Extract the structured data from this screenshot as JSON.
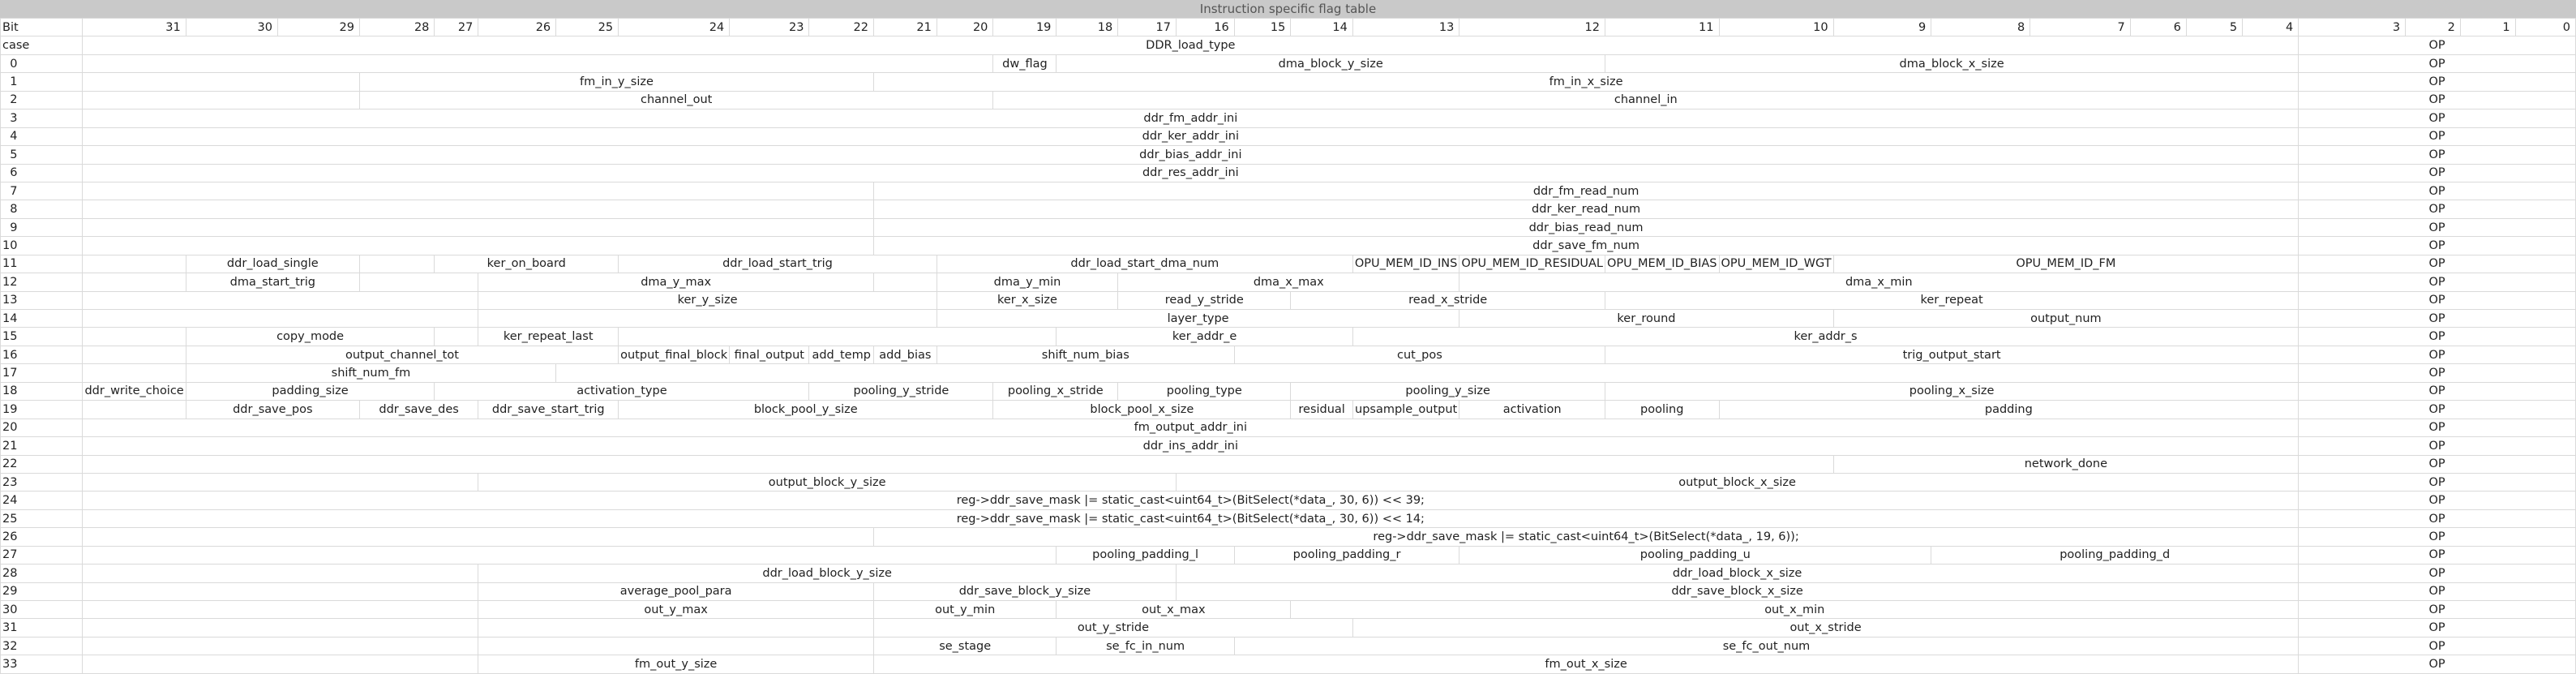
{
  "title": "Instruction specific flag table",
  "header": {
    "bit_label": "Bit",
    "case_label": "case",
    "bits": [
      "31",
      "30",
      "29",
      "28",
      "27",
      "26",
      "25",
      "24",
      "23",
      "22",
      "21",
      "20",
      "19",
      "18",
      "17",
      "16",
      "15",
      "14",
      "13",
      "12",
      "11",
      "10",
      "9",
      "8",
      "7",
      "6",
      "5",
      "4",
      "3",
      "2",
      "1",
      "0"
    ],
    "ddr_load_type": "DDR_load_type",
    "op": "OP"
  },
  "rows": [
    {
      "case": "0",
      "fields": [
        {
          "text": "",
          "span": 12
        },
        {
          "text": "dw_flag",
          "span": 1
        },
        {
          "text": "dma_block_y_size",
          "span": 7
        },
        {
          "text": "dma_block_x_size",
          "span": 8
        }
      ]
    },
    {
      "case": "1",
      "fields": [
        {
          "text": "",
          "span": 3
        },
        {
          "text": "fm_in_y_size",
          "span": 7
        },
        {
          "text": "fm_in_x_size",
          "span": 18
        }
      ]
    },
    {
      "case": "2",
      "fields": [
        {
          "text": "",
          "span": 3
        },
        {
          "text": "channel_out",
          "span": 9
        },
        {
          "text": "channel_in",
          "span": 16
        }
      ]
    },
    {
      "case": "3",
      "fields": [
        {
          "text": "ddr_fm_addr_ini",
          "span": 28
        }
      ]
    },
    {
      "case": "4",
      "fields": [
        {
          "text": "ddr_ker_addr_ini",
          "span": 28
        }
      ]
    },
    {
      "case": "5",
      "fields": [
        {
          "text": "ddr_bias_addr_ini",
          "span": 28
        }
      ]
    },
    {
      "case": "6",
      "fields": [
        {
          "text": "ddr_res_addr_ini",
          "span": 28
        }
      ]
    },
    {
      "case": "7",
      "fields": [
        {
          "text": "",
          "span": 10
        },
        {
          "text": "ddr_fm_read_num",
          "span": 18
        }
      ]
    },
    {
      "case": "8",
      "fields": [
        {
          "text": "",
          "span": 10
        },
        {
          "text": "ddr_ker_read_num",
          "span": 18
        }
      ]
    },
    {
      "case": "9",
      "fields": [
        {
          "text": "",
          "span": 10
        },
        {
          "text": "ddr_bias_read_num",
          "span": 18
        }
      ]
    },
    {
      "case": "10",
      "fields": [
        {
          "text": "",
          "span": 10
        },
        {
          "text": "ddr_save_fm_num",
          "span": 18
        }
      ]
    },
    {
      "case": "11",
      "fields": [
        {
          "text": "",
          "span": 1
        },
        {
          "text": "ddr_load_single",
          "span": 2
        },
        {
          "text": "",
          "span": 1
        },
        {
          "text": "ker_on_board",
          "span": 3
        },
        {
          "text": "ddr_load_start_trig",
          "span": 4
        },
        {
          "text": "ddr_load_start_dma_num",
          "span": 7
        },
        {
          "text": "OPU_MEM_ID_INS",
          "span": 1
        },
        {
          "text": "OPU_MEM_ID_RESIDUAL",
          "span": 1
        },
        {
          "text": "OPU_MEM_ID_BIAS",
          "span": 1
        },
        {
          "text": "OPU_MEM_ID_WGT",
          "span": 1
        },
        {
          "text": "OPU_MEM_ID_FM",
          "span": 6
        }
      ]
    },
    {
      "case": "12",
      "fields": [
        {
          "text": "",
          "span": 1
        },
        {
          "text": "dma_start_trig",
          "span": 2
        },
        {
          "text": "",
          "span": 2
        },
        {
          "text": "dma_y_max",
          "span": 5
        },
        {
          "text": "",
          "span": 1
        },
        {
          "text": "dma_y_min",
          "span": 3
        },
        {
          "text": "dma_x_max",
          "span": 5
        },
        {
          "text": "dma_x_min",
          "span": 9
        }
      ]
    },
    {
      "case": "13",
      "fields": [
        {
          "text": "",
          "span": 5
        },
        {
          "text": "ker_y_size",
          "span": 6
        },
        {
          "text": "ker_x_size",
          "span": 3
        },
        {
          "text": "read_y_stride",
          "span": 3
        },
        {
          "text": "read_x_stride",
          "span": 3
        },
        {
          "text": "ker_repeat",
          "span": 8
        }
      ]
    },
    {
      "case": "14",
      "fields": [
        {
          "text": "",
          "span": 5
        },
        {
          "text": "",
          "span": 6
        },
        {
          "text": "layer_type",
          "span": 8
        },
        {
          "text": "ker_round",
          "span": 3
        },
        {
          "text": "output_num",
          "span": 6
        }
      ]
    },
    {
      "case": "15",
      "fields": [
        {
          "text": "",
          "span": 1
        },
        {
          "text": "copy_mode",
          "span": 3
        },
        {
          "text": "",
          "span": 1
        },
        {
          "text": "ker_repeat_last",
          "span": 2
        },
        {
          "text": "",
          "span": 6
        },
        {
          "text": "ker_addr_e",
          "span": 5
        },
        {
          "text": "ker_addr_s",
          "span": 10
        }
      ]
    },
    {
      "case": "16",
      "fields": [
        {
          "text": "",
          "span": 1
        },
        {
          "text": "output_channel_tot",
          "span": 6
        },
        {
          "text": "output_final_block",
          "span": 1
        },
        {
          "text": "final_output",
          "span": 1
        },
        {
          "text": "add_temp",
          "span": 1
        },
        {
          "text": "add_bias",
          "span": 1
        },
        {
          "text": "shift_num_bias",
          "span": 5
        },
        {
          "text": "cut_pos",
          "span": 4
        },
        {
          "text": "trig_output_start",
          "span": 8
        }
      ]
    },
    {
      "case": "17",
      "fields": [
        {
          "text": "",
          "span": 1
        },
        {
          "text": "shift_num_fm",
          "span": 5
        },
        {
          "text": "",
          "span": 22
        }
      ]
    },
    {
      "case": "18",
      "fields": [
        {
          "text": "ddr_write_choice",
          "span": 1
        },
        {
          "text": "padding_size",
          "span": 3
        },
        {
          "text": "activation_type",
          "span": 5
        },
        {
          "text": "pooling_y_stride",
          "span": 3
        },
        {
          "text": "pooling_x_stride",
          "span": 2
        },
        {
          "text": "pooling_type",
          "span": 3
        },
        {
          "text": "pooling_y_size",
          "span": 3
        },
        {
          "text": "pooling_x_size",
          "span": 8
        }
      ]
    },
    {
      "case": "19",
      "fields": [
        {
          "text": "",
          "span": 1
        },
        {
          "text": "ddr_save_pos",
          "span": 2
        },
        {
          "text": "ddr_save_des",
          "span": 2
        },
        {
          "text": "ddr_save_start_trig",
          "span": 2
        },
        {
          "text": "block_pool_y_size",
          "span": 5
        },
        {
          "text": "block_pool_x_size",
          "span": 5
        },
        {
          "text": "residual",
          "span": 1
        },
        {
          "text": "upsample_output",
          "span": 1
        },
        {
          "text": "activation",
          "span": 1
        },
        {
          "text": "pooling",
          "span": 1
        },
        {
          "text": "padding",
          "span": 7
        }
      ]
    },
    {
      "case": "20",
      "fields": [
        {
          "text": "fm_output_addr_ini",
          "span": 28
        }
      ]
    },
    {
      "case": "21",
      "fields": [
        {
          "text": "ddr_ins_addr_ini",
          "span": 28
        }
      ]
    },
    {
      "case": "22",
      "fields": [
        {
          "text": "",
          "span": 22
        },
        {
          "text": "network_done",
          "span": 6
        }
      ]
    },
    {
      "case": "23",
      "fields": [
        {
          "text": "",
          "span": 5
        },
        {
          "text": "output_block_y_size",
          "span": 10
        },
        {
          "text": "output_block_x_size",
          "span": 13
        }
      ]
    },
    {
      "case": "24",
      "fields": [
        {
          "text": "reg->ddr_save_mask |= static_cast<uint64_t>(BitSelect(*data_, 30, 6)) << 39;",
          "span": 28
        }
      ]
    },
    {
      "case": "25",
      "fields": [
        {
          "text": "reg->ddr_save_mask |= static_cast<uint64_t>(BitSelect(*data_, 30, 6)) << 14;",
          "span": 28
        }
      ]
    },
    {
      "case": "26",
      "fields": [
        {
          "text": "",
          "span": 10
        },
        {
          "text": "reg->ddr_save_mask |= static_cast<uint64_t>(BitSelect(*data_, 19, 6));",
          "span": 18
        }
      ]
    },
    {
      "case": "27",
      "fields": [
        {
          "text": "",
          "span": 13
        },
        {
          "text": "pooling_padding_l",
          "span": 3
        },
        {
          "text": "pooling_padding_r",
          "span": 3
        },
        {
          "text": "pooling_padding_u",
          "span": 4
        },
        {
          "text": "pooling_padding_d",
          "span": 5
        }
      ]
    },
    {
      "case": "28",
      "fields": [
        {
          "text": "",
          "span": 5
        },
        {
          "text": "ddr_load_block_y_size",
          "span": 10
        },
        {
          "text": "ddr_load_block_x_size",
          "span": 13
        }
      ]
    },
    {
      "case": "29",
      "fields": [
        {
          "text": "",
          "span": 5
        },
        {
          "text": "average_pool_para",
          "span": 5
        },
        {
          "text": "ddr_save_block_y_size",
          "span": 5
        },
        {
          "text": "ddr_save_block_x_size",
          "span": 13
        }
      ]
    },
    {
      "case": "30",
      "fields": [
        {
          "text": "",
          "span": 5
        },
        {
          "text": "out_y_max",
          "span": 5
        },
        {
          "text": "out_y_min",
          "span": 3
        },
        {
          "text": "out_x_max",
          "span": 4
        },
        {
          "text": "out_x_min",
          "span": 11
        }
      ]
    },
    {
      "case": "31",
      "fields": [
        {
          "text": "",
          "span": 5
        },
        {
          "text": "",
          "span": 5
        },
        {
          "text": "out_y_stride",
          "span": 8
        },
        {
          "text": "out_x_stride",
          "span": 10
        }
      ]
    },
    {
      "case": "32",
      "fields": [
        {
          "text": "",
          "span": 5
        },
        {
          "text": "",
          "span": 5
        },
        {
          "text": "se_stage",
          "span": 3
        },
        {
          "text": "se_fc_in_num",
          "span": 3
        },
        {
          "text": "se_fc_out_num",
          "span": 12
        }
      ]
    },
    {
      "case": "33",
      "fields": [
        {
          "text": "",
          "span": 5
        },
        {
          "text": "fm_out_y_size",
          "span": 5
        },
        {
          "text": "fm_out_x_size",
          "span": 18
        }
      ]
    }
  ]
}
